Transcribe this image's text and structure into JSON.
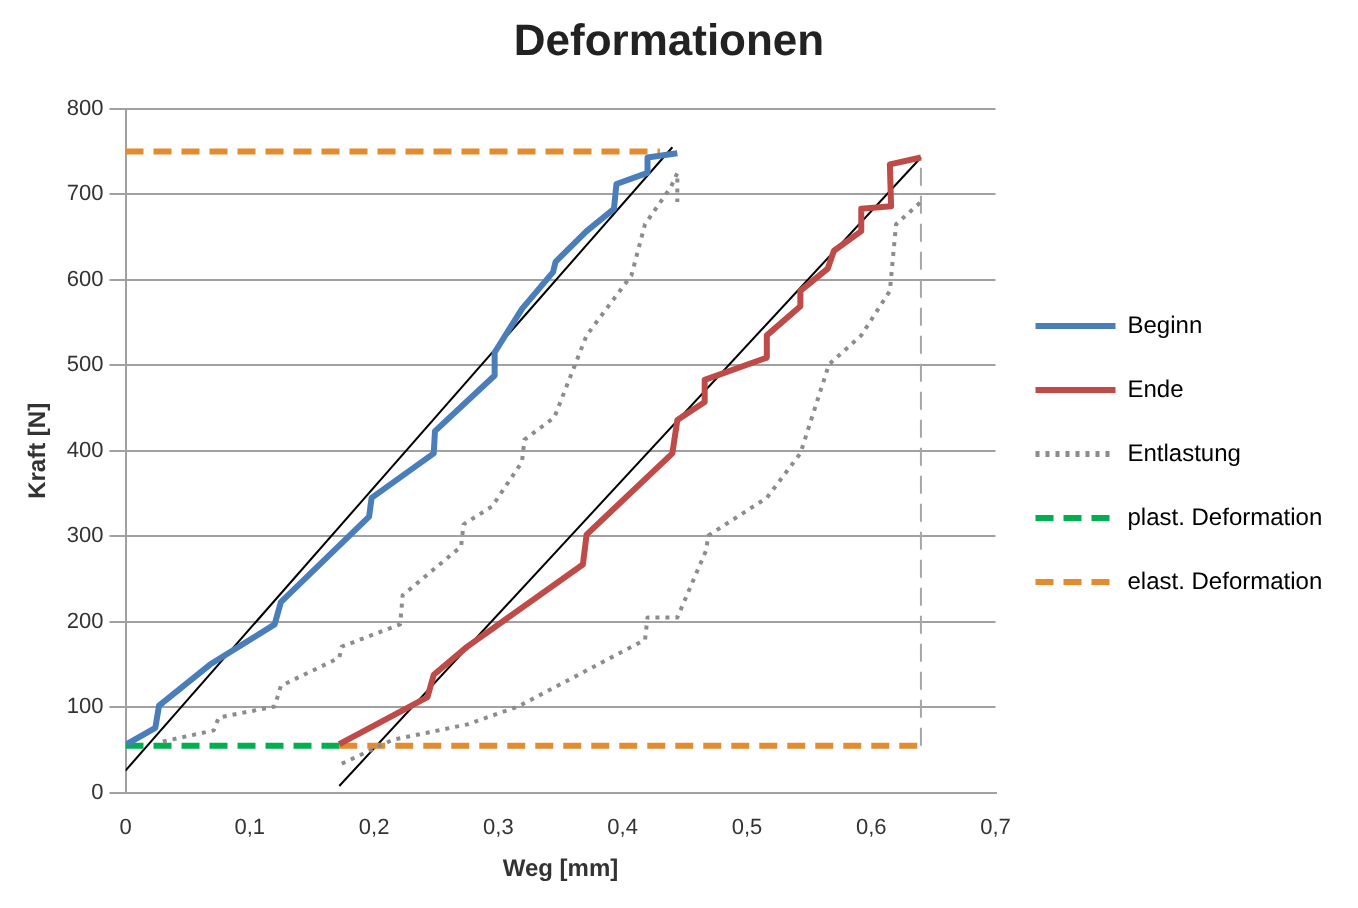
{
  "chart_data": {
    "type": "line",
    "title": "Deformationen",
    "xlabel": "Weg [mm]",
    "ylabel": "Kraft [N]",
    "xlim": [
      0,
      0.7
    ],
    "ylim": [
      0,
      800
    ],
    "xticks": [
      0,
      {
        "value": 0.1,
        "label": "0,1"
      },
      {
        "value": 0.2,
        "label": "0,2"
      },
      {
        "value": 0.3,
        "label": "0,3"
      },
      {
        "value": 0.4,
        "label": "0,4"
      },
      {
        "value": 0.5,
        "label": "0,5"
      },
      {
        "value": 0.6,
        "label": "0,6"
      },
      {
        "value": 0.7,
        "label": "0,7"
      }
    ],
    "yticks": [
      0,
      100,
      200,
      300,
      400,
      500,
      600,
      700,
      800
    ],
    "grid": "y",
    "legend": "right",
    "marker": "none",
    "series": [
      {
        "name": "Beginn",
        "color": "#4a7ebb",
        "line_style": "solid",
        "x": [
          0.001,
          0.024,
          0.027,
          0.068,
          0.12,
          0.125,
          0.196,
          0.198,
          0.248,
          0.249,
          0.297,
          0.297,
          0.319,
          0.344,
          0.346,
          0.371,
          0.393,
          0.395,
          0.42,
          0.42,
          0.444
        ],
        "values": [
          57,
          76,
          102,
          150,
          197,
          223,
          323,
          345,
          397,
          423,
          488,
          515,
          566,
          609,
          621,
          657,
          683,
          712,
          725,
          743,
          748
        ]
      },
      {
        "name": "Ende",
        "color": "#be4b48",
        "line_style": "solid",
        "x": [
          0.172,
          0.243,
          0.248,
          0.275,
          0.368,
          0.371,
          0.44,
          0.444,
          0.466,
          0.466,
          0.516,
          0.516,
          0.543,
          0.543,
          0.565,
          0.57,
          0.592,
          0.592,
          0.616,
          0.615,
          0.64
        ],
        "values": [
          57,
          112,
          138,
          171,
          267,
          302,
          397,
          436,
          457,
          483,
          509,
          535,
          569,
          587,
          613,
          634,
          657,
          683,
          686,
          735,
          743
        ]
      },
      {
        "name": "Entlastung",
        "color": "#8c8c8c",
        "line_style": "dotted",
        "x": [
          0.03,
          0.071,
          0.075,
          0.12,
          0.125,
          0.172,
          0.174,
          0.221,
          0.223,
          0.27,
          0.272,
          0.295,
          0.319,
          0.321,
          0.345,
          0.371,
          0.407,
          0.418,
          0.439,
          0.444,
          0.444,
          0.3,
          0.174,
          0.215,
          0.275,
          0.316,
          0.418,
          0.42,
          0.444,
          0.467,
          0.469,
          0.516,
          0.543,
          0.566,
          0.592,
          0.615,
          0.62,
          0.64
        ],
        "values": [
          60,
          73,
          88,
          101,
          125,
          158,
          171,
          197,
          231,
          288,
          314,
          335,
          387,
          413,
          439,
          535,
          605,
          665,
          709,
          725,
          691,
          null,
          34,
          62,
          80,
          101,
          179,
          205,
          205,
          283,
          301,
          345,
          397,
          501,
          535,
          587,
          665,
          691
        ]
      },
      {
        "name": "plast. Deformation",
        "color": "#00b050",
        "line_style": "dashed",
        "x": [
          0,
          0.172
        ],
        "values": [
          55,
          55
        ]
      },
      {
        "name": "elast. Deformation",
        "color": "#e48a2f",
        "line_style": "dashed",
        "x": [
          0,
          0.43,
          0.3,
          0.172,
          0.64
        ],
        "values": [
          750,
          750,
          null,
          55,
          55
        ]
      },
      {
        "color": "#000000",
        "line_style": "solid",
        "x": [
          0,
          0.44
        ],
        "values": [
          26,
          755
        ]
      },
      {
        "color": "#000000",
        "line_style": "solid",
        "x": [
          0.172,
          0.64
        ],
        "values": [
          8,
          743
        ]
      },
      {
        "color": "#a6a6a6",
        "line_style": "dashed",
        "x": [
          0.64,
          0.64
        ],
        "values": [
          55,
          743
        ]
      }
    ]
  }
}
